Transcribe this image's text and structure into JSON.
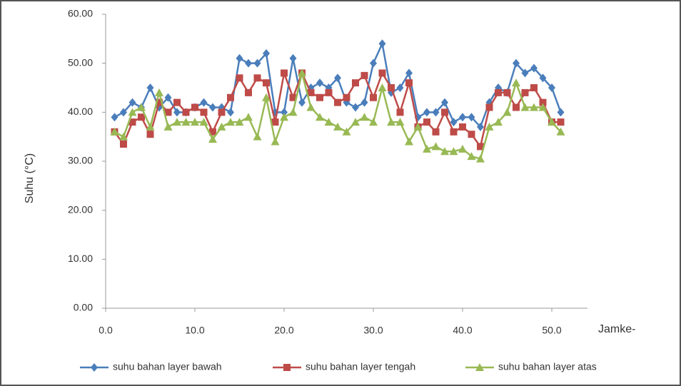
{
  "chart_data": {
    "type": "line",
    "y_label": "Suhu (°C)",
    "x_label": "Jamke-",
    "x": [
      1,
      2,
      3,
      4,
      5,
      6,
      7,
      8,
      9,
      10,
      11,
      12,
      13,
      14,
      15,
      16,
      17,
      18,
      19,
      20,
      21,
      22,
      23,
      24,
      25,
      26,
      27,
      28,
      29,
      30,
      31,
      32,
      33,
      34,
      35,
      36,
      37,
      38,
      39,
      40,
      41,
      42,
      43,
      44,
      45,
      46,
      47,
      48,
      49,
      50,
      51
    ],
    "series": [
      {
        "name": "suhu bahan layer bawah",
        "color": "#4a7ebb",
        "marker": "diamond",
        "values": [
          39,
          40,
          42,
          41,
          45,
          41,
          43,
          40,
          40,
          41,
          42,
          41,
          41,
          40,
          51,
          50,
          50,
          52,
          40,
          40,
          51,
          42,
          45,
          46,
          45,
          47,
          42,
          41,
          42,
          50,
          54,
          44,
          45,
          48,
          39,
          40,
          40,
          42,
          38,
          39,
          39,
          37,
          42,
          45,
          44,
          50,
          48,
          49,
          47,
          45,
          40
        ]
      },
      {
        "name": "suhu bahan layer tengah",
        "color": "#be4b48",
        "marker": "square",
        "values": [
          36,
          33.5,
          38,
          39,
          35.5,
          42,
          40,
          42,
          40,
          41,
          40,
          36,
          40,
          43,
          47,
          44,
          47,
          46,
          38,
          48,
          43,
          48,
          44,
          43,
          44,
          42,
          43,
          46,
          47.5,
          43,
          48,
          45,
          40,
          46,
          37,
          38,
          36,
          40,
          36,
          37,
          35.5,
          33,
          41,
          44,
          44,
          41,
          44,
          45,
          42,
          38,
          38
        ]
      },
      {
        "name": "suhu bahan layer atas",
        "color": "#98b954",
        "marker": "triangle",
        "values": [
          36,
          35,
          40,
          41,
          37,
          44,
          37,
          38,
          38,
          38,
          38,
          34.5,
          37,
          38,
          38,
          39,
          35,
          43,
          34,
          39,
          40,
          48,
          41,
          39,
          38,
          37,
          36,
          38,
          39,
          38,
          45,
          38,
          38,
          34,
          37,
          32.5,
          33,
          32,
          32,
          32.5,
          31,
          30.5,
          37,
          38,
          40,
          46,
          41,
          41,
          41,
          38,
          36
        ]
      }
    ],
    "xlim": [
      0,
      54
    ],
    "xticks": [
      {
        "value": 0,
        "label": "0.0"
      },
      {
        "value": 10,
        "label": "10.0"
      },
      {
        "value": 20,
        "label": "20.0"
      },
      {
        "value": 30,
        "label": "30.0"
      },
      {
        "value": 40,
        "label": "40.0"
      },
      {
        "value": 50,
        "label": "50.0"
      }
    ],
    "ylim": [
      0,
      60
    ],
    "yticks": [
      {
        "value": 0,
        "label": "0.00"
      },
      {
        "value": 10,
        "label": "10.00"
      },
      {
        "value": 20,
        "label": "20.00"
      },
      {
        "value": 30,
        "label": "30.00"
      },
      {
        "value": 40,
        "label": "40.00"
      },
      {
        "value": 50,
        "label": "50.00"
      },
      {
        "value": 60,
        "label": "60.00"
      }
    ],
    "grid": false,
    "legend": "bottom"
  }
}
